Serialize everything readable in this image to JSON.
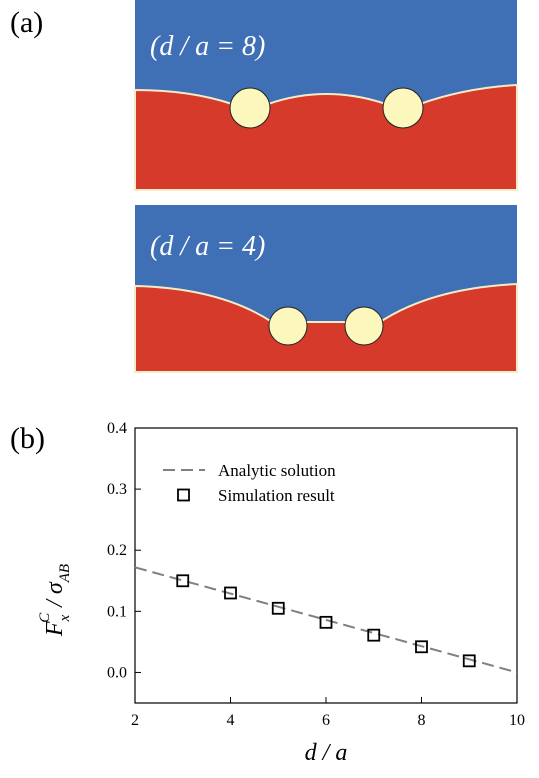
{
  "panel_a": {
    "label": "(a)",
    "captions": [
      "(d / a = 8)",
      "(d / a = 4)"
    ]
  },
  "chart_data": {
    "type": "scatter",
    "label": "(b)",
    "xlabel": "d / a",
    "ylabel_parts": [
      "F",
      "x",
      "C",
      " / σ",
      "AB"
    ],
    "xlim": [
      2,
      10
    ],
    "xticks": [
      2,
      4,
      6,
      8,
      10
    ],
    "ylim": [
      -0.05,
      0.4
    ],
    "yticks": [
      {
        "value": 0,
        "label": "0.0"
      },
      0.1,
      0.2,
      0.3,
      0.4
    ],
    "legend": "upper left",
    "series": [
      {
        "name": "Analytic solution",
        "color": "#808080",
        "style": "dashed-line",
        "x": [
          2,
          10
        ],
        "values": [
          0.172,
          0.0
        ]
      },
      {
        "name": "Simulation result",
        "color": "#000000",
        "style": "square-marker",
        "x": [
          3,
          4,
          5,
          6,
          7,
          8,
          9
        ],
        "values": [
          0.15,
          0.13,
          0.105,
          0.082,
          0.061,
          0.042,
          0.019
        ]
      }
    ]
  }
}
